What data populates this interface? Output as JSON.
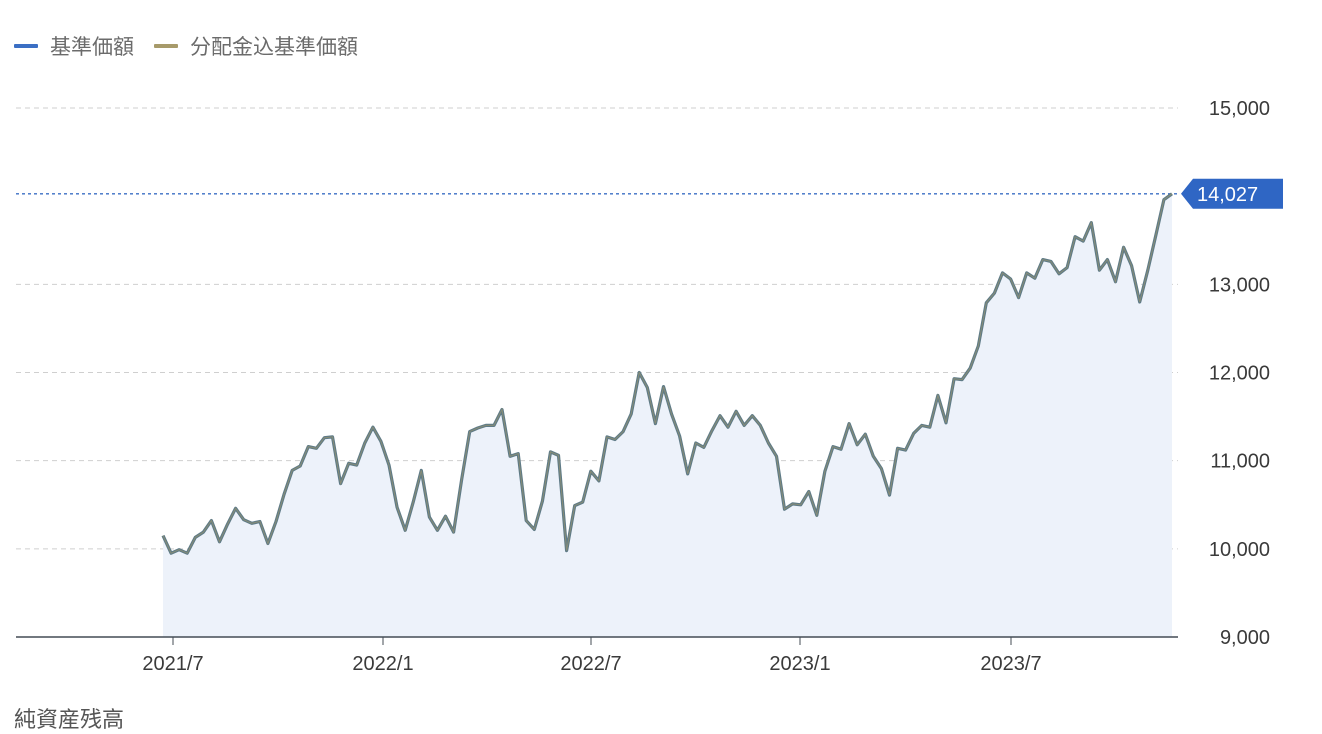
{
  "chart_data": {
    "type": "line",
    "series": [
      {
        "name": "基準価額",
        "color": "#3b6fc4"
      },
      {
        "name": "分配金込基準価額",
        "color": "#a79a6a"
      }
    ],
    "line_color": "#5f7b87",
    "fill_color": "#edf2fa",
    "x_ticks": [
      "2021/7",
      "2022/1",
      "2022/7",
      "2023/1",
      "2023/7"
    ],
    "y_ticks": [
      "9,000",
      "10,000",
      "11,000",
      "12,000",
      "13,000",
      "14,000",
      "15,000"
    ],
    "ylim": [
      9000,
      15000
    ],
    "grid": true,
    "last_value": 14027,
    "last_value_label": "14,027",
    "values": [
      10150,
      9950,
      9990,
      9950,
      10130,
      10190,
      10320,
      10080,
      10280,
      10460,
      10330,
      10290,
      10310,
      10060,
      10310,
      10620,
      10890,
      10940,
      11160,
      11140,
      11260,
      11270,
      10740,
      10970,
      10950,
      11200,
      11380,
      11220,
      10950,
      10470,
      10210,
      10530,
      10890,
      10360,
      10210,
      10370,
      10190,
      10790,
      11330,
      11370,
      11400,
      11400,
      11580,
      11050,
      11080,
      10320,
      10220,
      10540,
      11100,
      11060,
      9980,
      10490,
      10530,
      10880,
      10770,
      11270,
      11240,
      11330,
      11530,
      12000,
      11830,
      11420,
      11840,
      11530,
      11280,
      10850,
      11200,
      11150,
      11340,
      11510,
      11380,
      11560,
      11400,
      11510,
      11400,
      11200,
      11050,
      10450,
      10510,
      10500,
      10650,
      10380,
      10880,
      11160,
      11130,
      11420,
      11180,
      11300,
      11050,
      10910,
      10610,
      11140,
      11120,
      11310,
      11400,
      11380,
      11740,
      11430,
      11930,
      11920,
      12050,
      12300,
      12790,
      12900,
      13130,
      13060,
      12850,
      13130,
      13070,
      13280,
      13260,
      13120,
      13190,
      13540,
      13490,
      13700,
      13160,
      13280,
      13030,
      13420,
      13210,
      12800,
      13160,
      13560,
      13960,
      14027
    ],
    "footer_text": "純資産残高"
  }
}
